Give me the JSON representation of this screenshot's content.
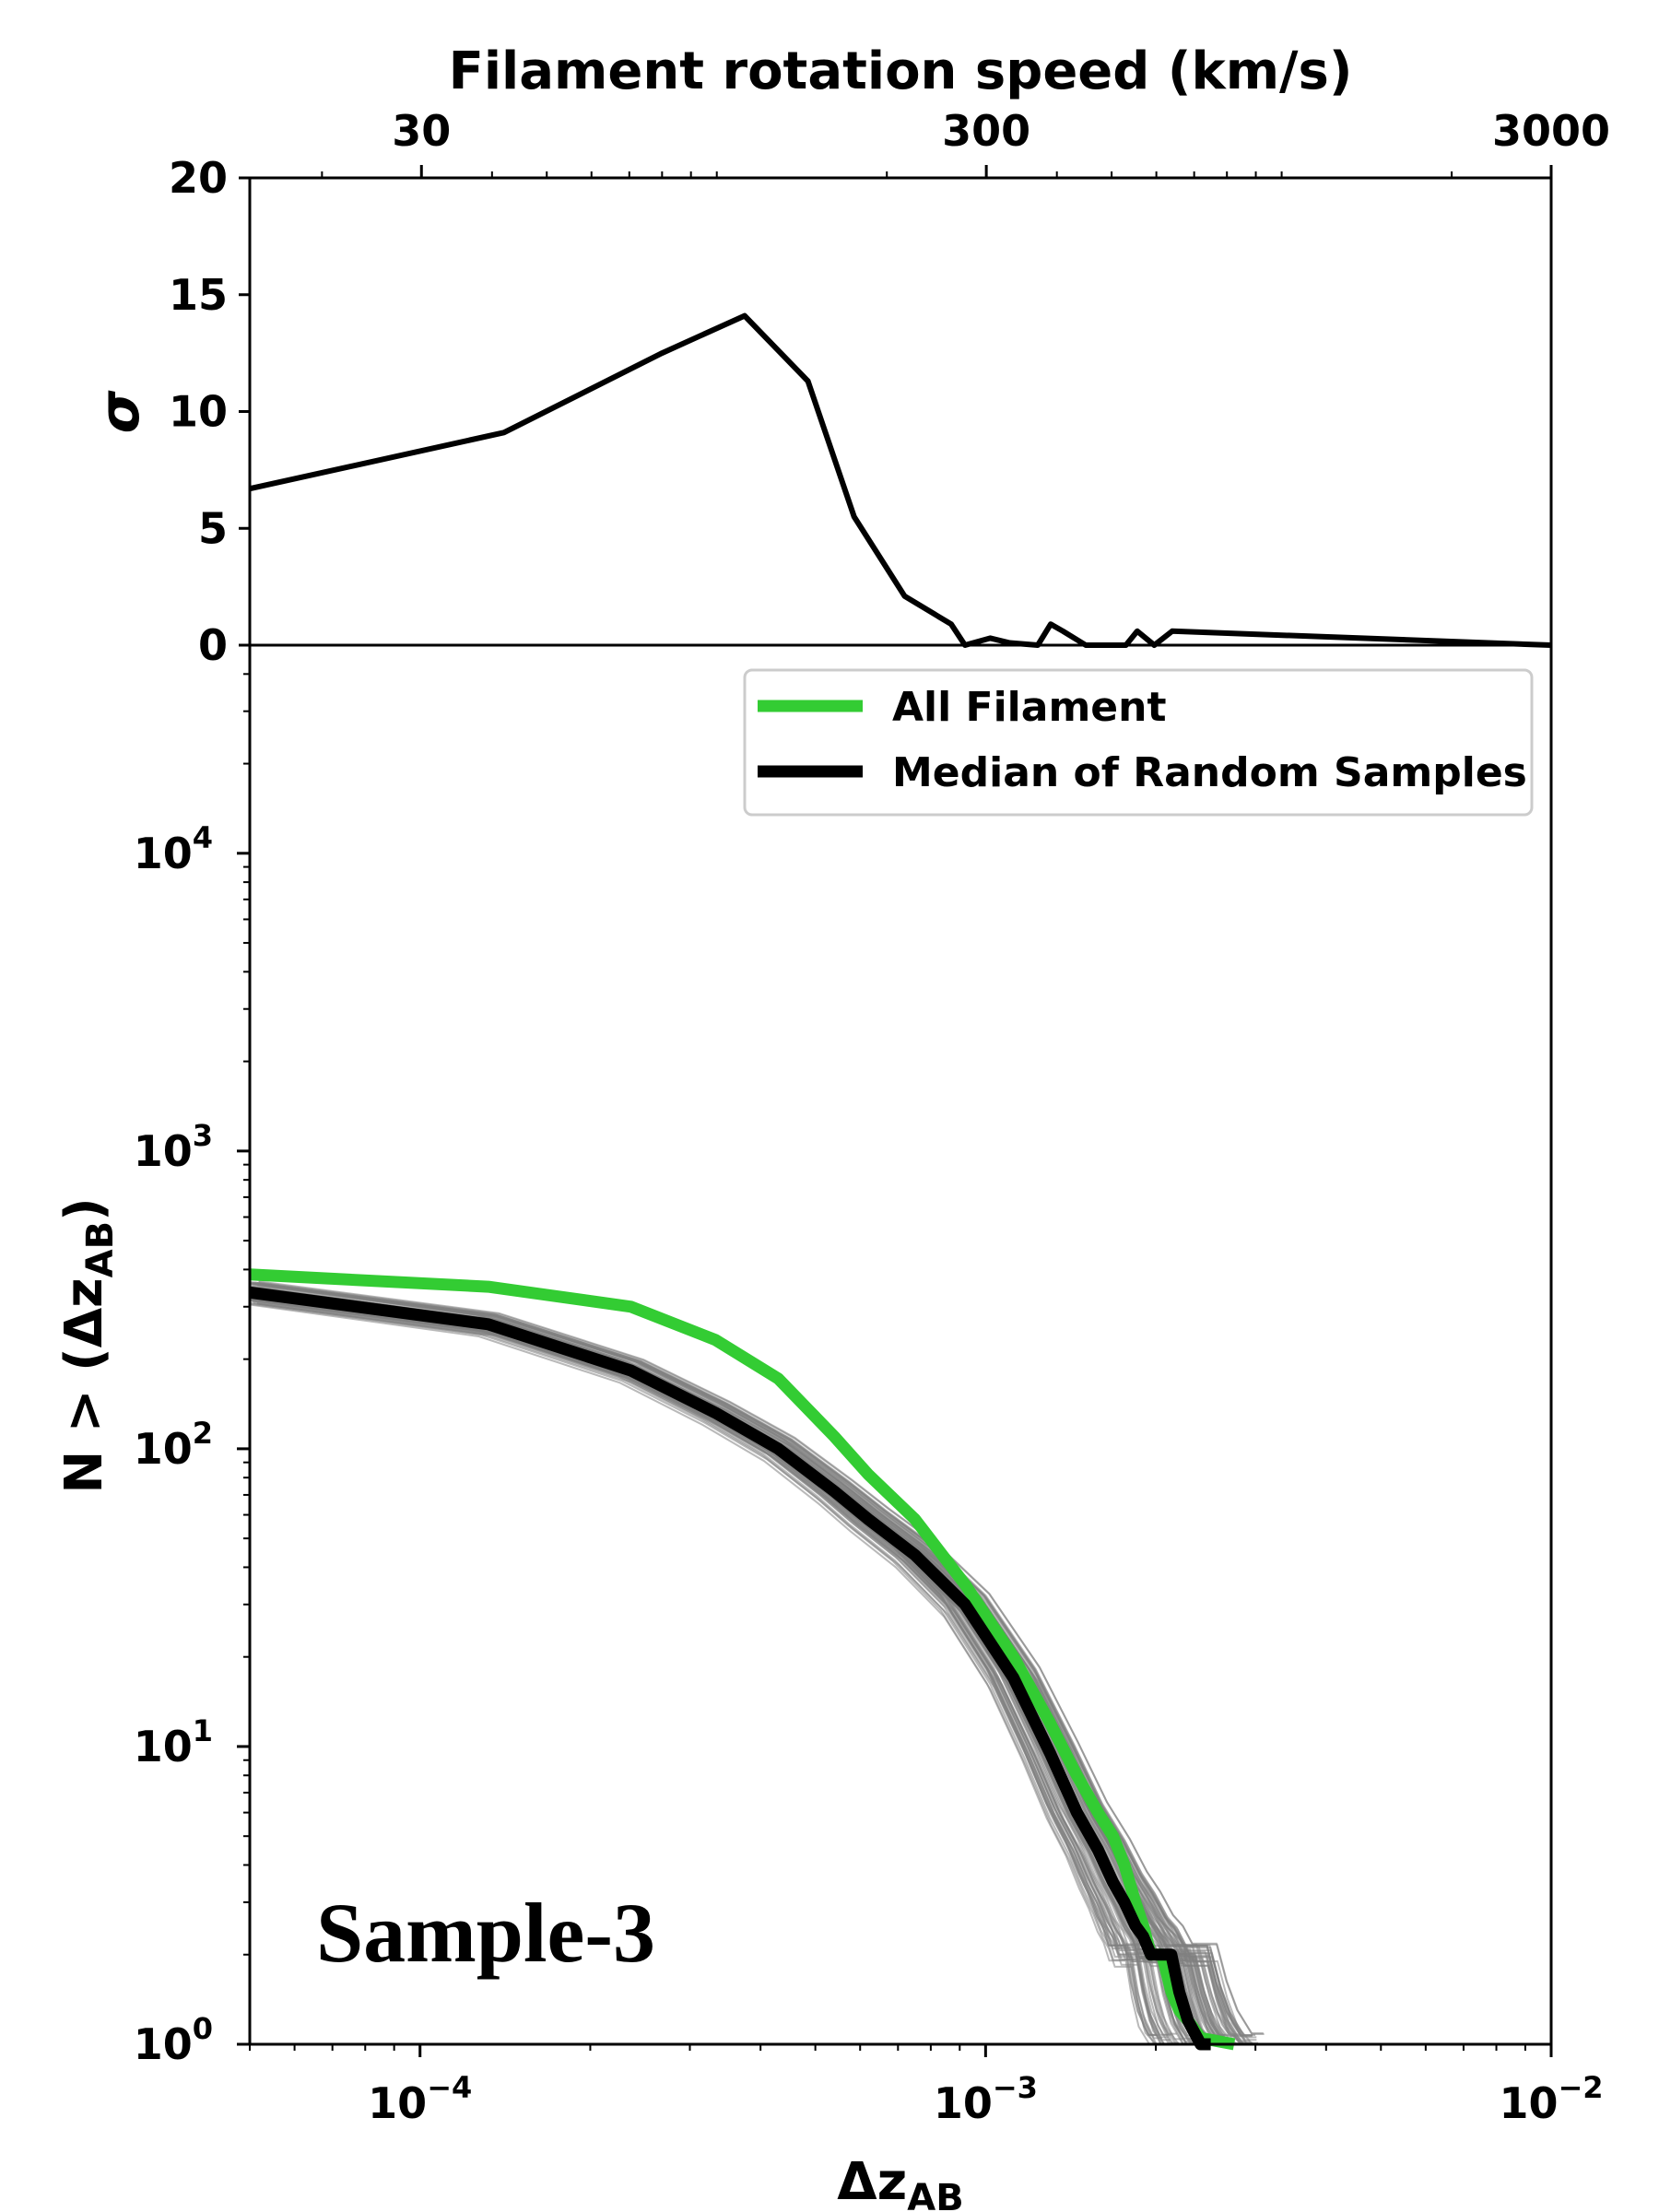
{
  "chart_data": [
    {
      "id": "top",
      "type": "line",
      "top_axis_title": "Filament rotation speed (km/s)",
      "top_ticks": [
        {
          "value": 30,
          "label": "30"
        },
        {
          "value": 300,
          "label": "300"
        },
        {
          "value": 3000,
          "label": "3000"
        }
      ],
      "ylabel": "σ",
      "ylim": [
        0,
        20
      ],
      "y_ticks": [
        {
          "value": 0,
          "label": "0"
        },
        {
          "value": 5,
          "label": "5"
        },
        {
          "value": 10,
          "label": "10"
        },
        {
          "value": 15,
          "label": "15"
        },
        {
          "value": 20,
          "label": "20"
        }
      ],
      "xlim_speed": [
        14.9,
        3000
      ],
      "series": [
        {
          "name": "sigma",
          "color": "#000000",
          "x": [
            14.9,
            42,
            80,
            112,
            145,
            175,
            215,
            260,
            275,
            305,
            330,
            370,
            390,
            410,
            450,
            530,
            555,
            595,
            640,
            3000
          ],
          "y": [
            6.7,
            9.1,
            12.5,
            14.1,
            11.3,
            5.5,
            2.1,
            0.9,
            0,
            0.3,
            0.1,
            0,
            0.9,
            0.6,
            0,
            0,
            0.6,
            0,
            0.6,
            0
          ]
        }
      ]
    },
    {
      "id": "bottom",
      "type": "line",
      "xlabel": "Δz",
      "xlabel_sub": "AB",
      "ylabel": "N > (Δz",
      "ylabel_sub": "AB",
      "ylabel_close": ")",
      "xlim": [
        5e-05,
        0.01
      ],
      "ylim": [
        1,
        50000
      ],
      "x_ticks": [
        {
          "value": 0.0001,
          "base": "10",
          "exp": "−4"
        },
        {
          "value": 0.001,
          "base": "10",
          "exp": "−3"
        },
        {
          "value": 0.01,
          "base": "10",
          "exp": "−2"
        }
      ],
      "y_ticks": [
        {
          "value": 1,
          "base": "10",
          "exp": "0"
        },
        {
          "value": 10,
          "base": "10",
          "exp": "1"
        },
        {
          "value": 100,
          "base": "10",
          "exp": "2"
        },
        {
          "value": 1000,
          "base": "10",
          "exp": "3"
        },
        {
          "value": 10000,
          "base": "10",
          "exp": "4"
        }
      ],
      "legend": [
        {
          "label": "All Filament",
          "color": "#33cc33"
        },
        {
          "label": "Median of Random Samples",
          "color": "#000000"
        }
      ],
      "annotation": "Sample-3",
      "random_band_color": "#808080",
      "series": [
        {
          "name": "All Filament",
          "color": "#33cc33",
          "x": [
            5e-05,
            0.000132,
            0.000236,
            0.000333,
            0.00043,
            0.00054,
            0.00062,
            0.00075,
            0.00092,
            0.00112,
            0.0013,
            0.00145,
            0.00158,
            0.00168,
            0.00176,
            0.00184,
            0.0019,
            0.00196,
            0.00205,
            0.00213,
            0.0022,
            0.00228,
            0.0024,
            0.00275
          ],
          "y": [
            385,
            350,
            300,
            232,
            172,
            110,
            82,
            58,
            35,
            20,
            12,
            8,
            6,
            5,
            4,
            3,
            2.5,
            2,
            2,
            1.5,
            1.3,
            1.2,
            1.05,
            1
          ]
        },
        {
          "name": "Median of Random Samples",
          "color": "#000000",
          "x": [
            5e-05,
            0.000132,
            0.000236,
            0.000333,
            0.00043,
            0.00054,
            0.00062,
            0.00075,
            0.00092,
            0.00112,
            0.0013,
            0.00145,
            0.00158,
            0.00168,
            0.00176,
            0.00184,
            0.0019,
            0.00196,
            0.00205,
            0.00213,
            0.0022,
            0.00228,
            0.0024,
            0.0025
          ],
          "y": [
            335,
            262,
            183,
            132,
            100,
            72,
            58,
            44,
            30,
            17,
            9.5,
            6,
            4.5,
            3.5,
            3,
            2.5,
            2.3,
            2,
            2,
            2,
            1.5,
            1.2,
            1,
            1
          ]
        }
      ]
    }
  ]
}
